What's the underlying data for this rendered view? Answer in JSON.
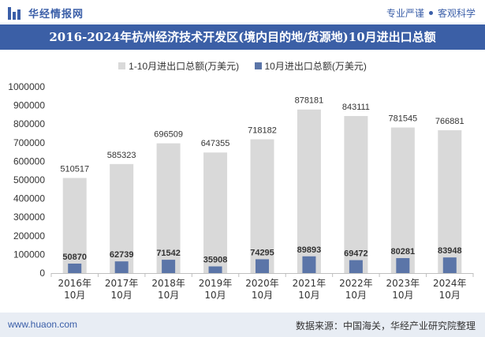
{
  "header": {
    "brand_name": "华经情报网",
    "slogan_left": "专业严谨",
    "slogan_right": "客观科学"
  },
  "colors": {
    "brand_blue": "#3b5fa6",
    "series_total": "#d9d9d9",
    "series_month": "#5b75a8"
  },
  "chart_data": {
    "type": "bar",
    "title": "2016-2024年杭州经济技术开发区(境内目的地/货源地)10月进出口总额",
    "categories": [
      "2016年10月",
      "2017年10月",
      "2018年10月",
      "2019年10月",
      "2020年10月",
      "2021年10月",
      "2022年10月",
      "2023年10月",
      "2024年10月"
    ],
    "category_lines": [
      [
        "2016年",
        "10月"
      ],
      [
        "2017年",
        "10月"
      ],
      [
        "2018年",
        "10月"
      ],
      [
        "2019年",
        "10月"
      ],
      [
        "2020年",
        "10月"
      ],
      [
        "2021年",
        "10月"
      ],
      [
        "2022年",
        "10月"
      ],
      [
        "2023年",
        "10月"
      ],
      [
        "2024年",
        "10月"
      ]
    ],
    "series": [
      {
        "name": "1-10月进出口总额(万美元)",
        "values": [
          510517,
          585323,
          696509,
          647355,
          718182,
          878181,
          843111,
          781545,
          766881
        ]
      },
      {
        "name": "10月进出口总额(万美元)",
        "values": [
          50870,
          62739,
          71542,
          35908,
          74295,
          89893,
          69472,
          80281,
          83948
        ]
      }
    ],
    "ylim": [
      0,
      1000000
    ],
    "yticks": [
      0,
      100000,
      200000,
      300000,
      400000,
      500000,
      600000,
      700000,
      800000,
      900000,
      1000000
    ],
    "grid": false,
    "legend": "top-center"
  },
  "footer": {
    "website": "www.huaon.com",
    "source": "数据来源：中国海关，华经产业研究院整理"
  }
}
